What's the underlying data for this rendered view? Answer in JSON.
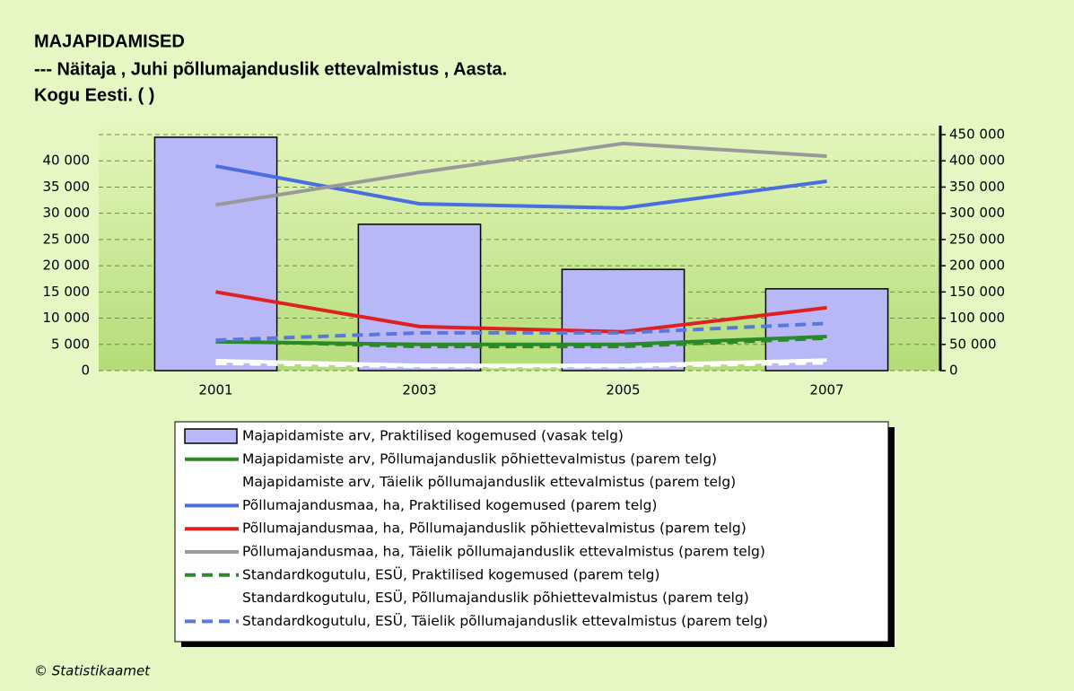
{
  "chart_data": {
    "type": "combo",
    "title": "MAJAPIDAMISED",
    "subtitle": "--- Näitaja , Juhi põllumajanduslik ettevalmistus , Aasta.",
    "subtitle2": "Kogu Eesti. ( )",
    "source": "© Statistikaamet",
    "categories": [
      "2001",
      "2003",
      "2005",
      "2007"
    ],
    "ylim": [
      0,
      45000
    ],
    "yticks": [
      0,
      {
        "value": 5000,
        "label": "5 000"
      },
      {
        "value": 10000,
        "label": "10 000"
      },
      {
        "value": 15000,
        "label": "15 000"
      },
      {
        "value": 20000,
        "label": "20 000"
      },
      {
        "value": 25000,
        "label": "25 000"
      },
      {
        "value": 30000,
        "label": "30 000"
      },
      {
        "value": 35000,
        "label": "35 000"
      },
      {
        "value": 40000,
        "label": "40 000"
      }
    ],
    "y2lim": [
      0,
      450000
    ],
    "y2ticks": [
      0,
      {
        "value": 50000,
        "label": "50 000"
      },
      {
        "value": 100000,
        "label": "100 000"
      },
      {
        "value": 150000,
        "label": "150 000"
      },
      {
        "value": 200000,
        "label": "200 000"
      },
      {
        "value": 250000,
        "label": "250 000"
      },
      {
        "value": 300000,
        "label": "300 000"
      },
      {
        "value": 350000,
        "label": "350 000"
      },
      {
        "value": 400000,
        "label": "400 000"
      },
      {
        "value": 450000,
        "label": "450 000"
      }
    ],
    "grid": true,
    "series": [
      {
        "name": "Majapidamiste arv, Praktilised kogemused (vasak telg)",
        "type": "bar",
        "color": "#b8b8f8",
        "values": [
          44500,
          27900,
          19300,
          15600
        ]
      },
      {
        "name": "Majapidamiste arv, Põllumajanduslik põhiettevalmistus (parem telg)",
        "type": "line",
        "axis": "y2",
        "color": "#2a8a2a",
        "dashed": false,
        "values": [
          55000,
          50000,
          50000,
          65000
        ]
      },
      {
        "name": "Majapidamiste arv, Täielik põllumajanduslik ettevalmistus (parem telg)",
        "type": "line",
        "axis": "y2",
        "color": "#ffffff",
        "dashed": false,
        "values": [
          19000,
          10000,
          10000,
          20000
        ]
      },
      {
        "name": "Põllumajandusmaa, ha, Praktilised kogemused (parem telg)",
        "type": "line",
        "axis": "y2",
        "color": "#4a6ee0",
        "dashed": false,
        "values": [
          390000,
          318000,
          310000,
          361000
        ]
      },
      {
        "name": "Põllumajandusmaa, ha, Põllumajanduslik põhiettevalmistus (parem telg)",
        "type": "line",
        "axis": "y2",
        "color": "#e02020",
        "dashed": false,
        "values": [
          150000,
          84000,
          74000,
          120000
        ]
      },
      {
        "name": "Põllumajandusmaa, ha, Täielik põllumajanduslik ettevalmistus (parem telg)",
        "type": "line",
        "axis": "y2",
        "color": "#999999",
        "dashed": false,
        "values": [
          316000,
          378000,
          433000,
          409000
        ]
      },
      {
        "name": "Standardkogutulu, ESÜ, Praktilised kogemused (parem telg)",
        "type": "line",
        "axis": "y2",
        "color": "#2a8a2a",
        "dashed": true,
        "values": [
          57000,
          46000,
          46000,
          62000
        ]
      },
      {
        "name": "Standardkogutulu, ESÜ, Põllumajanduslik põhiettevalmistus (parem telg)",
        "type": "line",
        "axis": "y2",
        "color": "#ffffff",
        "dashed": true,
        "values": [
          14000,
          8000,
          8000,
          15000
        ]
      },
      {
        "name": "Standardkogutulu, ESÜ, Täielik põllumajanduslik ettevalmistus (parem telg)",
        "type": "line",
        "axis": "y2",
        "color": "#5a78d8",
        "dashed": true,
        "values": [
          58000,
          72000,
          72000,
          90000
        ]
      }
    ]
  }
}
